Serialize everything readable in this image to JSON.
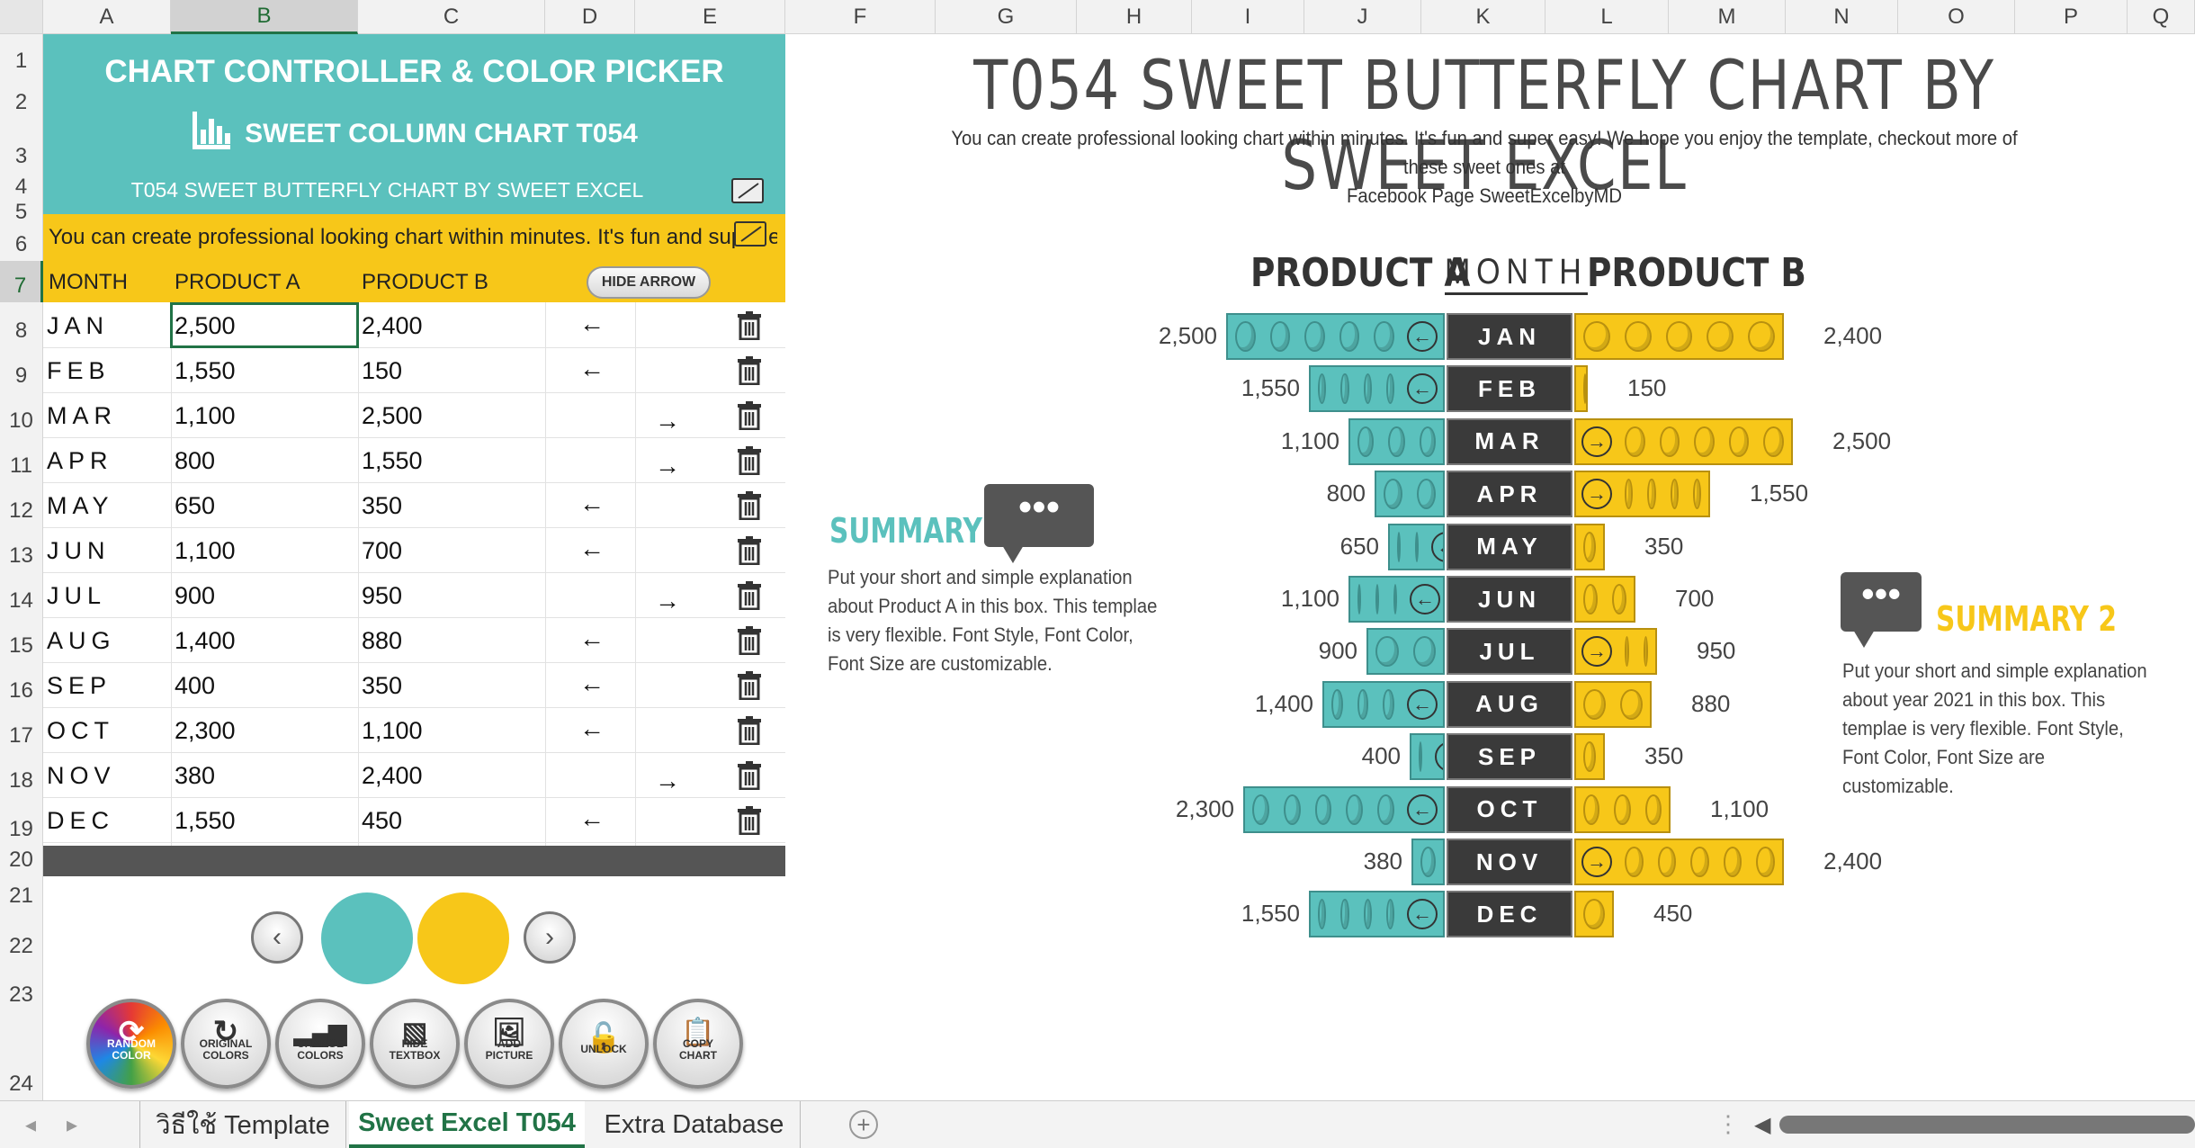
{
  "columns": [
    "A",
    "B",
    "C",
    "D",
    "E",
    "F",
    "G",
    "H",
    "I",
    "J",
    "K",
    "L",
    "M",
    "N",
    "O",
    "P",
    "Q"
  ],
  "rows": [
    "1",
    "2",
    "3",
    "4",
    "5",
    "6",
    "7",
    "8",
    "9",
    "10",
    "11",
    "12",
    "13",
    "14",
    "15",
    "16",
    "17",
    "18",
    "19",
    "20",
    "21",
    "22",
    "23",
    "24"
  ],
  "panel": {
    "title": "CHART CONTROLLER & COLOR PICKER",
    "subtitle": "SWEET COLUMN CHART T054",
    "chart_name": "T054 SWEET BUTTERFLY CHART BY SWEET EXCEL",
    "scroll_text": "You can create professional looking chart within minutes. It's fun and super e",
    "hide_arrow": "HIDE ARROW"
  },
  "table": {
    "headers": [
      "MONTH",
      "PRODUCT A",
      "PRODUCT B"
    ],
    "rows": [
      {
        "month": "JAN",
        "a": "2,500",
        "b": "2,400",
        "dir": "left"
      },
      {
        "month": "FEB",
        "a": "1,550",
        "b": "150",
        "dir": "left"
      },
      {
        "month": "MAR",
        "a": "1,100",
        "b": "2,500",
        "dir": "right"
      },
      {
        "month": "APR",
        "a": "800",
        "b": "1,550",
        "dir": "right"
      },
      {
        "month": "MAY",
        "a": "650",
        "b": "350",
        "dir": "left"
      },
      {
        "month": "JUN",
        "a": "1,100",
        "b": "700",
        "dir": "left"
      },
      {
        "month": "JUL",
        "a": "900",
        "b": "950",
        "dir": "right"
      },
      {
        "month": "AUG",
        "a": "1,400",
        "b": "880",
        "dir": "left"
      },
      {
        "month": "SEP",
        "a": "400",
        "b": "350",
        "dir": "left"
      },
      {
        "month": "OCT",
        "a": "2,300",
        "b": "1,100",
        "dir": "left"
      },
      {
        "month": "NOV",
        "a": "380",
        "b": "2,400",
        "dir": "right"
      },
      {
        "month": "DEC",
        "a": "1,550",
        "b": "450",
        "dir": "left"
      }
    ]
  },
  "colors": {
    "product_a": "#5bc1bd",
    "product_b": "#f7c719",
    "panel": "#5bc1bd",
    "bar_label": "#3a3a3a"
  },
  "buttons": {
    "random": "RANDOM COLOR",
    "original": "ORIGINAL COLORS",
    "change": "CHANGE COLORS",
    "hide_textbox": "HIDE TEXTBOX",
    "add_picture": "ADD PICTURE",
    "unlock": "UNLOCK",
    "copy": "COPY CHART"
  },
  "chart": {
    "title": "T054 SWEET BUTTERFLY CHART BY SWEET EXCEL",
    "subtitle1": "You can create professional looking chart within minutes. It's fun and super easy! We hope you enjoy the template, checkout more of these sweet ones at",
    "subtitle2": "Facebook Page SweetExcelbyMD",
    "legend_a": "PRODUCT A",
    "legend_month": "MONTH",
    "legend_b": "PRODUCT B",
    "summary1_title": "SUMMARY 1",
    "summary1_text": "Put your short and simple explanation about Product A in this box. This templae is very flexible. Font Style, Font Color, Font Size are customizable.",
    "summary2_title": "SUMMARY 2",
    "summary2_text": "Put your short and simple explanation about year 2021 in this box. This templae is very flexible. Font Style, Font Color, Font Size are customizable."
  },
  "chart_data": {
    "type": "bar",
    "title": "T054 SWEET BUTTERFLY CHART BY SWEET EXCEL",
    "categories": [
      "JAN",
      "FEB",
      "MAR",
      "APR",
      "MAY",
      "JUN",
      "JUL",
      "AUG",
      "SEP",
      "OCT",
      "NOV",
      "DEC"
    ],
    "series": [
      {
        "name": "PRODUCT A",
        "values": [
          2500,
          1550,
          1100,
          800,
          650,
          1100,
          900,
          1400,
          400,
          2300,
          380,
          1550
        ]
      },
      {
        "name": "PRODUCT B",
        "values": [
          2400,
          150,
          2500,
          1550,
          350,
          700,
          950,
          880,
          350,
          1100,
          2400,
          450
        ]
      }
    ],
    "labels_a": [
      "2,500",
      "1,550",
      "1,100",
      "800",
      "650",
      "1,100",
      "900",
      "1,400",
      "400",
      "2,300",
      "380",
      "1,550"
    ],
    "labels_b": [
      "2,400",
      "150",
      "2,500",
      "1,550",
      "350",
      "700",
      "950",
      "880",
      "350",
      "1,100",
      "2,400",
      "450"
    ],
    "orientation": "horizontal butterfly"
  },
  "tabs": [
    "วิธีใช้ Template",
    "Sweet Excel T054",
    "Extra Database"
  ],
  "active_tab": "Sweet Excel T054"
}
